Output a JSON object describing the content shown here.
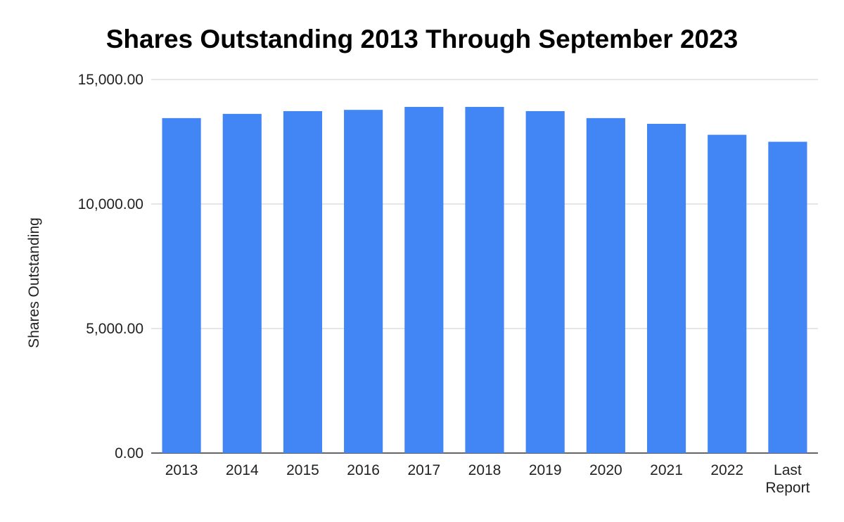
{
  "chart_data": {
    "type": "bar",
    "title": "Shares Outstanding 2013 Through September 2023",
    "xlabel": "",
    "ylabel": "Shares Outstanding",
    "categories": [
      "2013",
      "2014",
      "2015",
      "2016",
      "2017",
      "2018",
      "2019",
      "2020",
      "2021",
      "2022",
      "Last Report"
    ],
    "series": [
      {
        "values": [
          13450,
          13620,
          13730,
          13780,
          13900,
          13900,
          13730,
          13450,
          13220,
          12780,
          12500
        ],
        "color": "#4285f4"
      }
    ],
    "ylim": [
      0,
      15000
    ],
    "y_ticks": [
      0,
      5000,
      10000,
      15000
    ],
    "y_tick_labels": [
      "0.00",
      "5,000.00",
      "10,000.00",
      "15,000.00"
    ],
    "grid": true,
    "legend": "none"
  }
}
